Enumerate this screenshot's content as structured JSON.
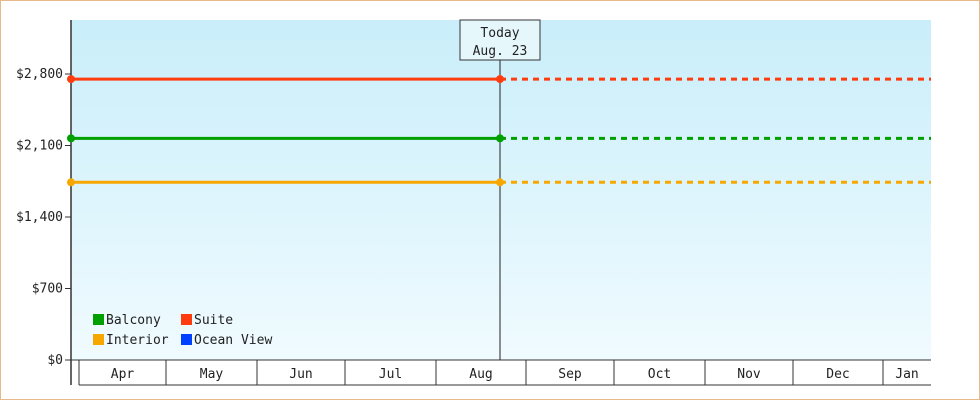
{
  "chart_data": {
    "type": "line",
    "categories": [
      "Apr",
      "May",
      "Jun",
      "Jul",
      "Aug",
      "Sep",
      "Oct",
      "Nov",
      "Dec",
      "Jan"
    ],
    "y_ticks": [
      {
        "value": 0,
        "label": "$0"
      },
      {
        "value": 700,
        "label": "$700"
      },
      {
        "value": 1400,
        "label": "$1,400"
      },
      {
        "value": 2100,
        "label": "$2,100"
      },
      {
        "value": 2800,
        "label": "$2,800"
      }
    ],
    "ylim": [
      0,
      2800
    ],
    "today_index": 5,
    "callout": {
      "line1": "Today",
      "line2": "Aug. 23"
    },
    "series": [
      {
        "name": "Balcony",
        "color": "#00a000",
        "value": 2170,
        "start_index": 0,
        "today_index": 5,
        "end_index": 10
      },
      {
        "name": "Suite",
        "color": "#ff3b10",
        "value": 2750,
        "start_index": 0,
        "today_index": 5,
        "end_index": 10
      },
      {
        "name": "Interior",
        "color": "#f7a800",
        "value": 1740,
        "start_index": 0,
        "today_index": 5,
        "end_index": 10
      },
      {
        "name": "Ocean View",
        "color": "#0040ff",
        "value": null
      }
    ],
    "grid": false,
    "legend_position": "bottom-left",
    "plot_background": [
      "#c9eefa",
      "#f0fbff"
    ]
  }
}
